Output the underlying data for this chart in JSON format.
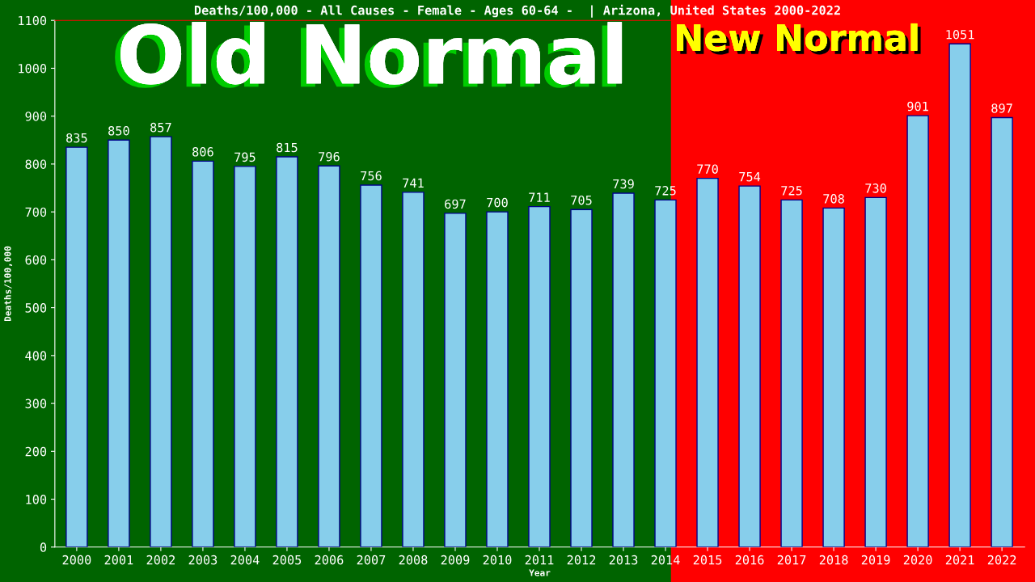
{
  "chart_data": {
    "type": "bar",
    "title": "Deaths/100,000 - All Causes - Female - Ages 60-64 -  | Arizona, United States 2000-2022",
    "xlabel": "Year",
    "ylabel": "Deaths/100,000",
    "categories": [
      "2000",
      "2001",
      "2002",
      "2003",
      "2004",
      "2005",
      "2006",
      "2007",
      "2008",
      "2009",
      "2010",
      "2011",
      "2012",
      "2013",
      "2014",
      "2015",
      "2016",
      "2017",
      "2018",
      "2019",
      "2020",
      "2021",
      "2022"
    ],
    "values": [
      835,
      850,
      857,
      806,
      795,
      815,
      796,
      756,
      741,
      697,
      700,
      711,
      705,
      739,
      725,
      770,
      754,
      725,
      708,
      730,
      901,
      1051,
      897
    ],
    "color": "#87ceeb",
    "ylim": [
      0,
      1100
    ],
    "yticks": [
      0,
      100,
      200,
      300,
      400,
      500,
      600,
      700,
      800,
      900,
      1000,
      1100
    ],
    "data_labels": true,
    "grid": false,
    "bands": [
      {
        "axis": "x",
        "from": "2014",
        "to": "2022",
        "color": "#ff0000"
      }
    ],
    "annotations": [
      "Old Normal",
      "New Normal"
    ]
  }
}
